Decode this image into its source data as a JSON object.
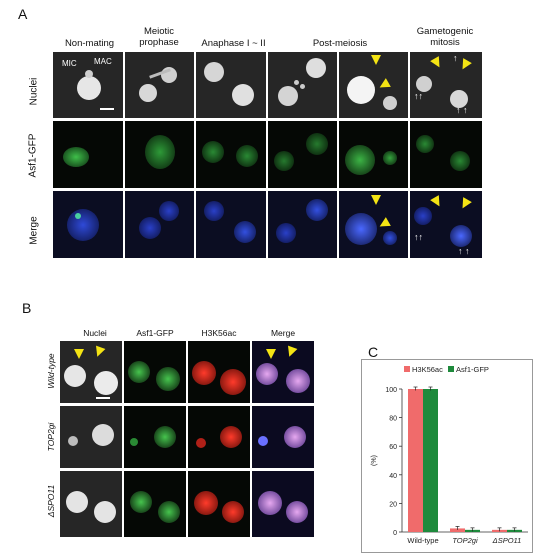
{
  "panelA": {
    "label": "A",
    "columns": [
      "Non-mating",
      "Meiotic\nprophase",
      "Anaphase  I ~ II",
      "Post-meiosis",
      "Gametogenic\nmitosis"
    ],
    "rows": [
      "Nuclei",
      "Asf1-GFP",
      "Merge"
    ],
    "annotations": {
      "mic": "MIC",
      "mac": "MAC"
    }
  },
  "panelB": {
    "label": "B",
    "columns": [
      "Nuclei",
      "Asf1-GFP",
      "H3K56ac",
      "Merge"
    ],
    "rows": [
      "Wild-type",
      "TOP2gi",
      "ΔSPO11"
    ]
  },
  "panelC": {
    "label": "C"
  },
  "colors": {
    "h3k56ac": "#f06b6b",
    "asf1gfp": "#1e8a3c"
  },
  "chart_data": {
    "type": "bar",
    "categories": [
      "Wild-type",
      "TOP2gi",
      "ΔSPO11"
    ],
    "series": [
      {
        "name": "H3K56ac",
        "values": [
          100,
          2.5,
          1.5
        ]
      },
      {
        "name": "Asf1-GFP",
        "values": [
          100,
          1.5,
          1.5
        ]
      }
    ],
    "ylabel": "(%)",
    "ylim": [
      0,
      100
    ],
    "yticks": [
      "0",
      "20",
      "40",
      "60",
      "80",
      "100"
    ],
    "legend": "top"
  }
}
